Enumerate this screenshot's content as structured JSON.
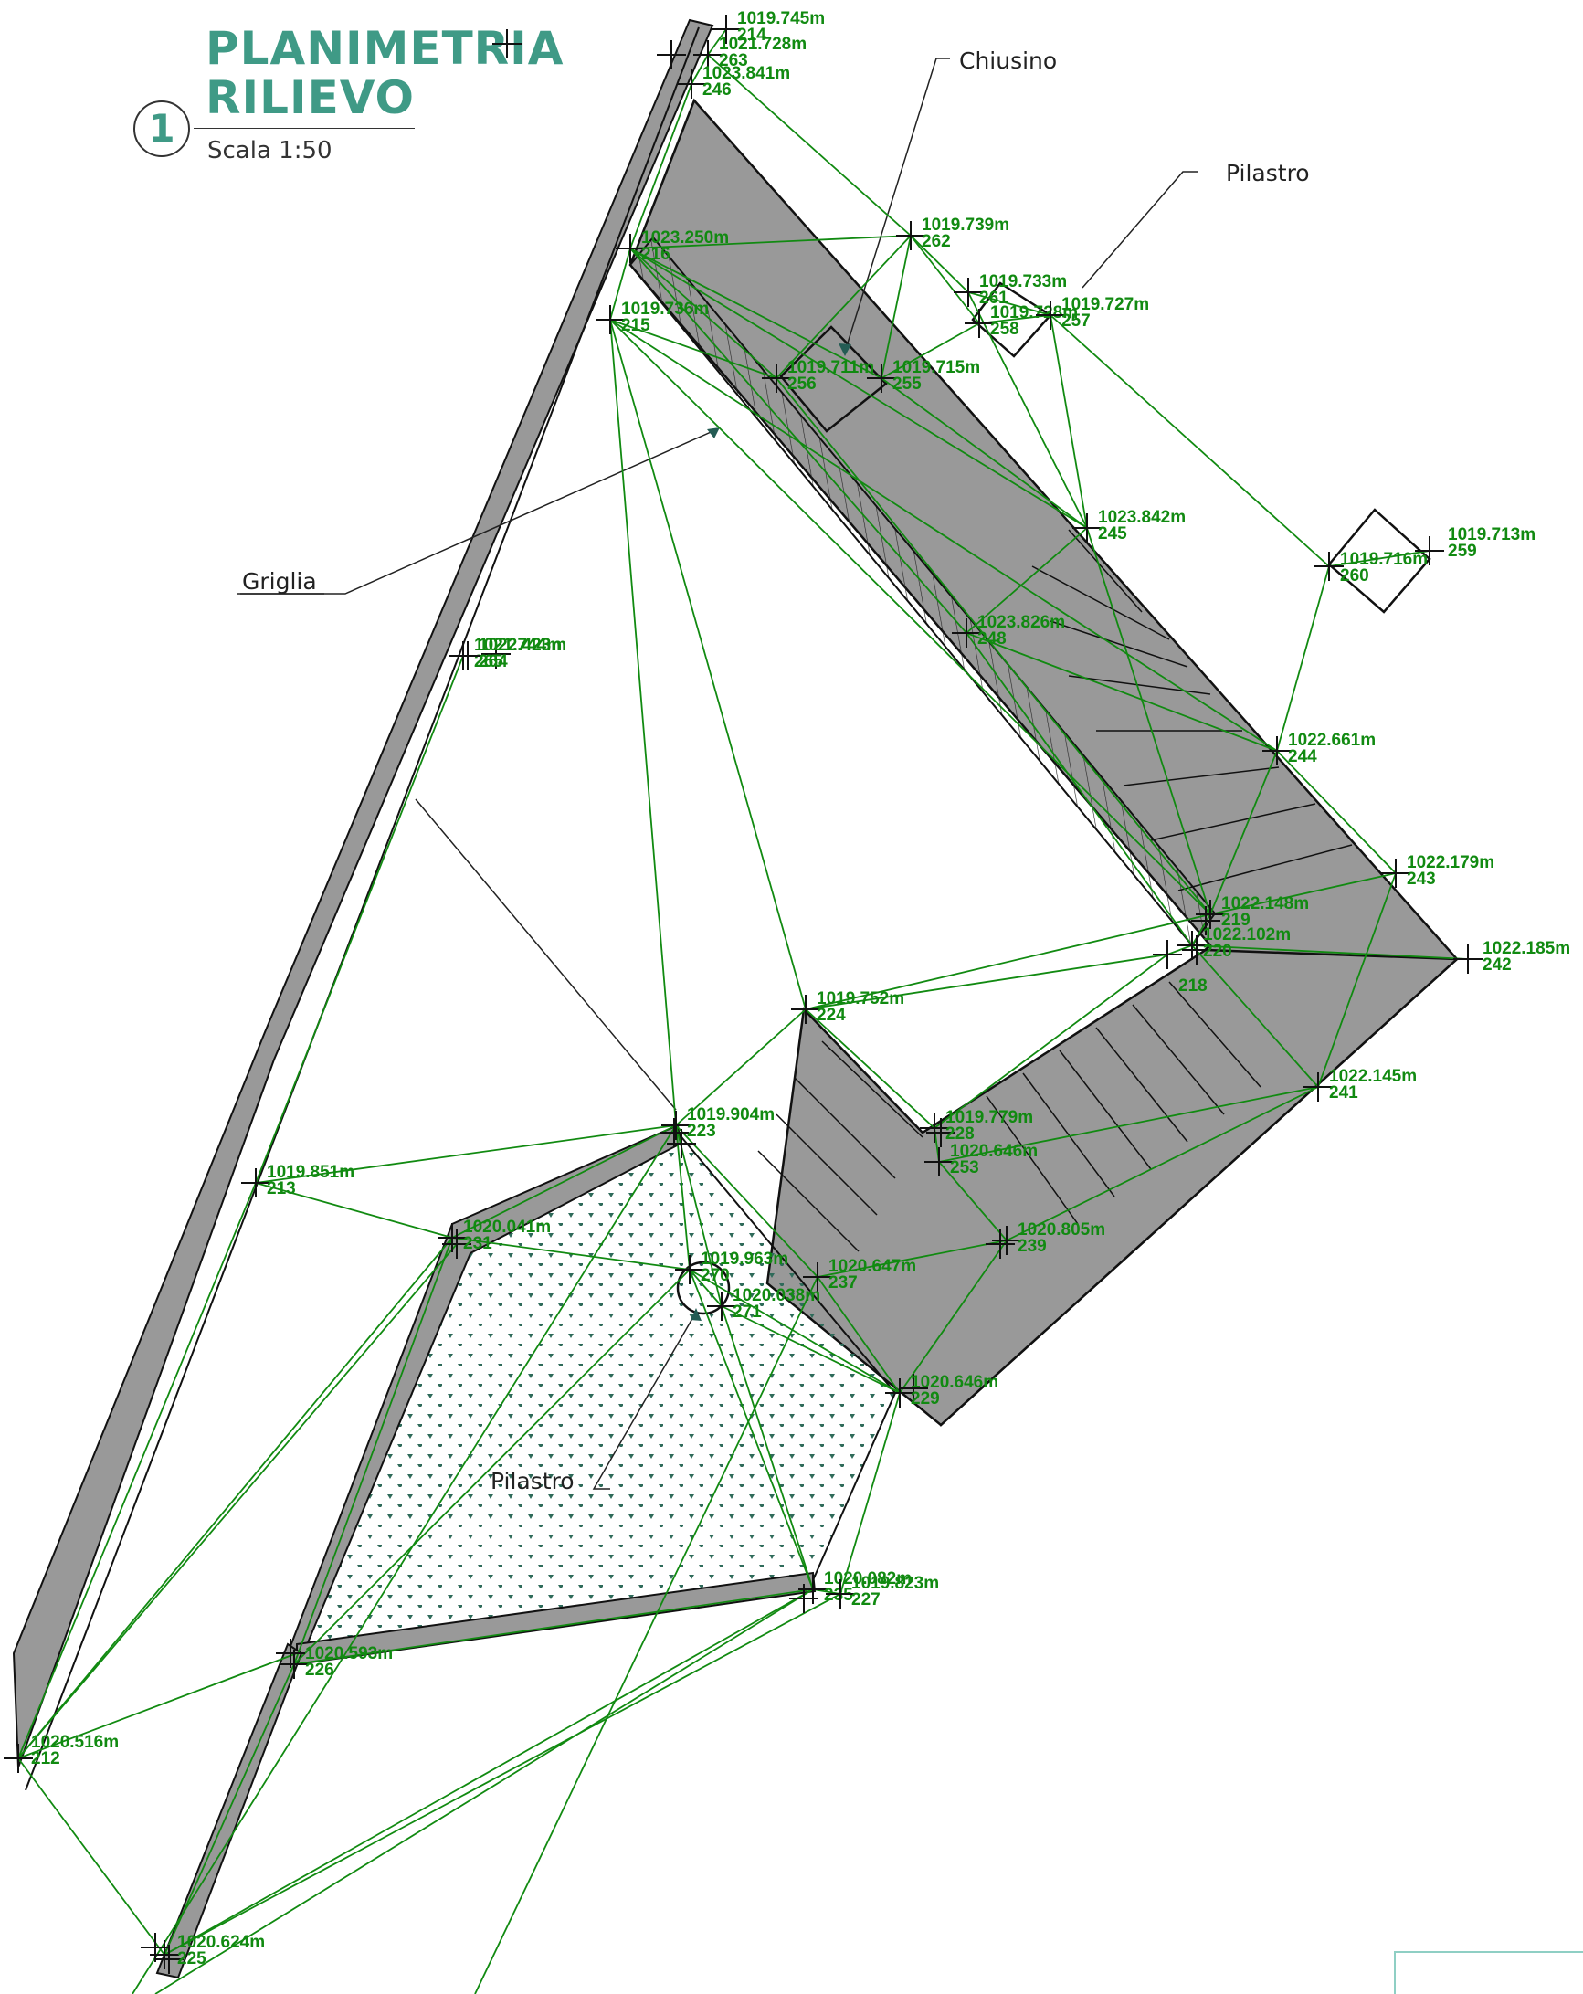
{
  "header": {
    "number": "1",
    "title_line1": "PLANIMETRIA",
    "title_line2": "RILIEVO",
    "scale": "Scala 1:50"
  },
  "colors": {
    "title": "#3f9a86",
    "survey_lines": "#118a11",
    "wall_fill": "#999999",
    "outline": "#111111",
    "callout": "#222222"
  },
  "callouts": {
    "chiusino": "Chiusino",
    "pilastro_top": "Pilastro",
    "griglia": "Griglia",
    "pilastro_bottom": "Pilastro"
  },
  "points": [
    {
      "id": "214",
      "elev": "1019.745m"
    },
    {
      "id": "263",
      "elev": "1021.728m"
    },
    {
      "id": "246",
      "elev": "1023.841m"
    },
    {
      "id": "262",
      "elev": "1019.739m"
    },
    {
      "id": "261",
      "elev": "1019.733m"
    },
    {
      "id": "258",
      "elev": "1019.728m"
    },
    {
      "id": "257",
      "elev": "1019.727m"
    },
    {
      "id": "216",
      "elev": "1023.250m"
    },
    {
      "id": "215",
      "elev": "1019.736m"
    },
    {
      "id": "256",
      "elev": "1019.711m"
    },
    {
      "id": "255",
      "elev": "1019.715m"
    },
    {
      "id": "245",
      "elev": "1023.842m"
    },
    {
      "id": "260",
      "elev": "1019.716m"
    },
    {
      "id": "259",
      "elev": "1019.713m"
    },
    {
      "id": "265",
      "elev": "1021.744m"
    },
    {
      "id": "264",
      "elev": "1022.423m"
    },
    {
      "id": "248",
      "elev": "1023.826m"
    },
    {
      "id": "244",
      "elev": "1022.661m"
    },
    {
      "id": "243",
      "elev": "1022.179m"
    },
    {
      "id": "219",
      "elev": "1022.148m"
    },
    {
      "id": "220",
      "elev": "1022.102m"
    },
    {
      "id": "242",
      "elev": "1022.185m"
    },
    {
      "id": "218",
      "elev": ""
    },
    {
      "id": "224",
      "elev": "1019.752m"
    },
    {
      "id": "241",
      "elev": "1022.145m"
    },
    {
      "id": "228",
      "elev": "1019.779m"
    },
    {
      "id": "253",
      "elev": "1020.646m"
    },
    {
      "id": "223",
      "elev": "1019.904m"
    },
    {
      "id": "213",
      "elev": "1019.851m"
    },
    {
      "id": "231",
      "elev": "1020.041m"
    },
    {
      "id": "239",
      "elev": "1020.805m"
    },
    {
      "id": "270",
      "elev": "1019.963m"
    },
    {
      "id": "237",
      "elev": "1020.647m"
    },
    {
      "id": "271",
      "elev": "1020.038m"
    },
    {
      "id": "229",
      "elev": "1020.646m"
    },
    {
      "id": "235",
      "elev": "1020.082m"
    },
    {
      "id": "227",
      "elev": "1019.823m"
    },
    {
      "id": "226",
      "elev": "1020.593m"
    },
    {
      "id": "212",
      "elev": "1020.516m"
    },
    {
      "id": "225",
      "elev": "1020.624m"
    }
  ]
}
